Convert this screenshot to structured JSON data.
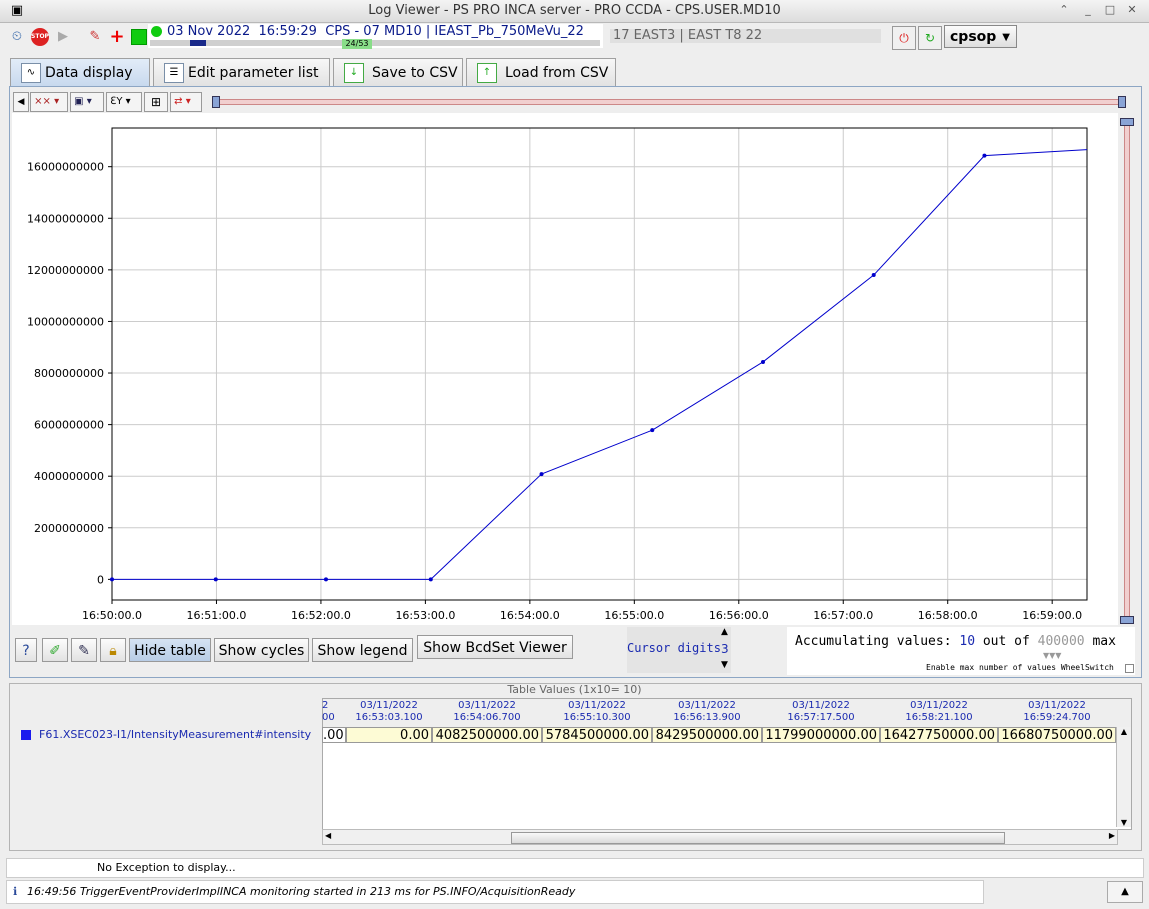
{
  "window": {
    "title": "Log Viewer - PS PRO INCA server - PRO CCDA  - CPS.USER.MD10"
  },
  "toolbar": {
    "date": "03 Nov 2022",
    "time": "16:59:29",
    "context": "CPS - 07 MD10 | IEAST_Pb_750MeVu_22",
    "cycle_counter": "24/53",
    "user_info": "17 EAST3 | EAST T8 22",
    "account": "cpsop"
  },
  "tabs": [
    {
      "label": "Data display"
    },
    {
      "label": "Edit parameter list"
    },
    {
      "label": "Save to CSV"
    },
    {
      "label": "Load from CSV"
    }
  ],
  "chart_data": {
    "type": "line",
    "title": "",
    "xlabel": "",
    "ylabel": "",
    "x_ticks": [
      "16:50:00.0",
      "16:51:00.0",
      "16:52:00.0",
      "16:53:00.0",
      "16:54:00.0",
      "16:55:00.0",
      "16:56:00.0",
      "16:57:00.0",
      "16:58:00.0",
      "16:59:00.0"
    ],
    "y_ticks": [
      "0",
      "2000000000",
      "4000000000",
      "6000000000",
      "8000000000",
      "10000000000",
      "12000000000",
      "14000000000",
      "16000000000"
    ],
    "y_tick_values": [
      0,
      2000000000,
      4000000000,
      6000000000,
      8000000000,
      10000000000,
      12000000000,
      14000000000,
      16000000000
    ],
    "xlim_seconds": [
      0,
      560
    ],
    "ylim": [
      -800000000,
      17500000000
    ],
    "series": [
      {
        "color": "#0000cc",
        "x_seconds": [
          0,
          59.6,
          122.9,
          183.1,
          246.7,
          310.3,
          373.9,
          437.5,
          501.1,
          564.7
        ],
        "values": [
          0,
          0,
          0,
          0,
          4082500000,
          5784500000,
          8429500000,
          11799000000,
          16427750000,
          16680750000
        ]
      }
    ]
  },
  "controls": {
    "hide_table": "Hide table",
    "show_cycles": "Show cycles",
    "show_legend": "Show legend",
    "show_bcdset": "Show BcdSet Viewer",
    "cursor_digits_label": "Cursor digits",
    "cursor_digits_value": "3",
    "accum_label": "Accumulating values:",
    "accum_count": "10",
    "accum_out_of": "out of",
    "accum_max_value": "400000",
    "accum_max": "max",
    "enable_max_label": "Enable max number of values WheelSwitch"
  },
  "table": {
    "title": "Table Values (1x10= 10)",
    "row_label": "F61.XSEC023-I1/IntensityMeasurement#intensity",
    "columns": [
      {
        "date": "2",
        "time": "00",
        "value": ".00"
      },
      {
        "date": "03/11/2022",
        "time": "16:53:03.100",
        "value": "0.00"
      },
      {
        "date": "03/11/2022",
        "time": "16:54:06.700",
        "value": "4082500000.00"
      },
      {
        "date": "03/11/2022",
        "time": "16:55:10.300",
        "value": "5784500000.00"
      },
      {
        "date": "03/11/2022",
        "time": "16:56:13.900",
        "value": "8429500000.00"
      },
      {
        "date": "03/11/2022",
        "time": "16:57:17.500",
        "value": "11799000000.00"
      },
      {
        "date": "03/11/2022",
        "time": "16:58:21.100",
        "value": "16427750000.00"
      },
      {
        "date": "03/11/2022",
        "time": "16:59:24.700",
        "value": "16680750000.00"
      }
    ]
  },
  "status": {
    "exception_text": "No Exception to display...",
    "log_text": "16:49:56 TriggerEventProviderImplINCA monitoring started in 213 ms  for PS.INFO/AcquisitionReady"
  }
}
